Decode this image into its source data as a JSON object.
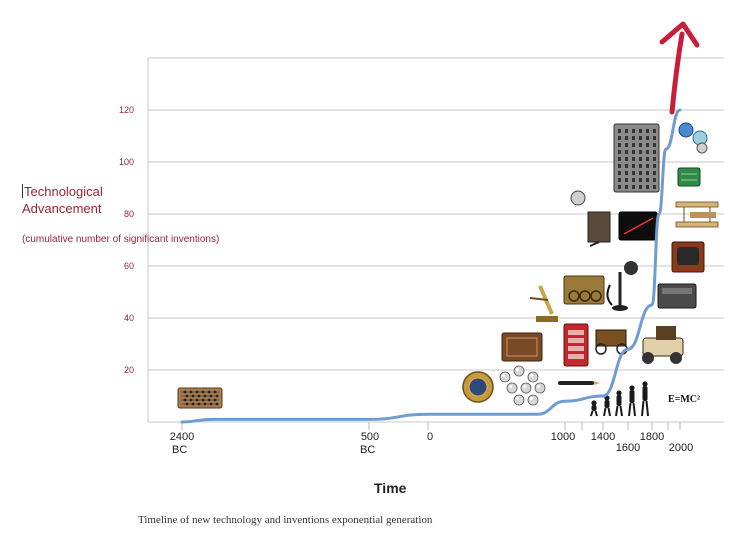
{
  "chart_data": {
    "type": "line",
    "ylabel": "Technological Advancement",
    "ylabel_note": "(cumulative number of significant inventions)",
    "xlabel": "Time",
    "yticks": [
      20,
      40,
      60,
      80,
      100,
      120
    ],
    "ylim": [
      0,
      140
    ],
    "grid": true,
    "x_ticks": [
      {
        "label": "2400",
        "label2": "BC",
        "pos": 0
      },
      {
        "label": "500",
        "label2": "BC",
        "pos": 1
      },
      {
        "label": "0",
        "label2": "",
        "pos": 2
      },
      {
        "label": "1000",
        "label2": "",
        "pos": 3
      },
      {
        "label": "1400",
        "label2": "",
        "pos": 4
      },
      {
        "label": "1600",
        "label2": "",
        "pos": 5
      },
      {
        "label": "1800",
        "label2": "",
        "pos": 6
      },
      {
        "label": "2000",
        "label2": "",
        "pos": 7
      }
    ],
    "series": [
      {
        "values": [
          {
            "x": -2400,
            "y": 0
          },
          {
            "x": -2100,
            "y": 1
          },
          {
            "x": -500,
            "y": 1
          },
          {
            "x": 0,
            "y": 3
          },
          {
            "x": 800,
            "y": 3
          },
          {
            "x": 1000,
            "y": 8
          },
          {
            "x": 1400,
            "y": 10
          },
          {
            "x": 1600,
            "y": 28
          },
          {
            "x": 1800,
            "y": 45
          },
          {
            "x": 1850,
            "y": 80
          },
          {
            "x": 1900,
            "y": 105
          },
          {
            "x": 2000,
            "y": 120
          }
        ]
      }
    ],
    "colors": {
      "line": "#6f9dd1",
      "arrow": "#c81e3a",
      "grid": "#c8c8c8",
      "axis_text": "#9b2335"
    },
    "illustrations": [
      "abacus-icon",
      "astrolabe-icon",
      "bearings-icon",
      "book-icon",
      "pen-icon",
      "phone-booth-icon",
      "microscope-icon",
      "steam-engine-icon",
      "telephone-icon",
      "camera-icon",
      "building-icon",
      "laser-icon",
      "airplane-icon",
      "television-icon",
      "computer-icon",
      "circuit-board-icon",
      "globe-icon",
      "old-car-icon",
      "vintage-car-icon",
      "evolution-icon"
    ],
    "formula_text": "E=MC²"
  },
  "caption": "Timeline of new technology and inventions exponential generation"
}
